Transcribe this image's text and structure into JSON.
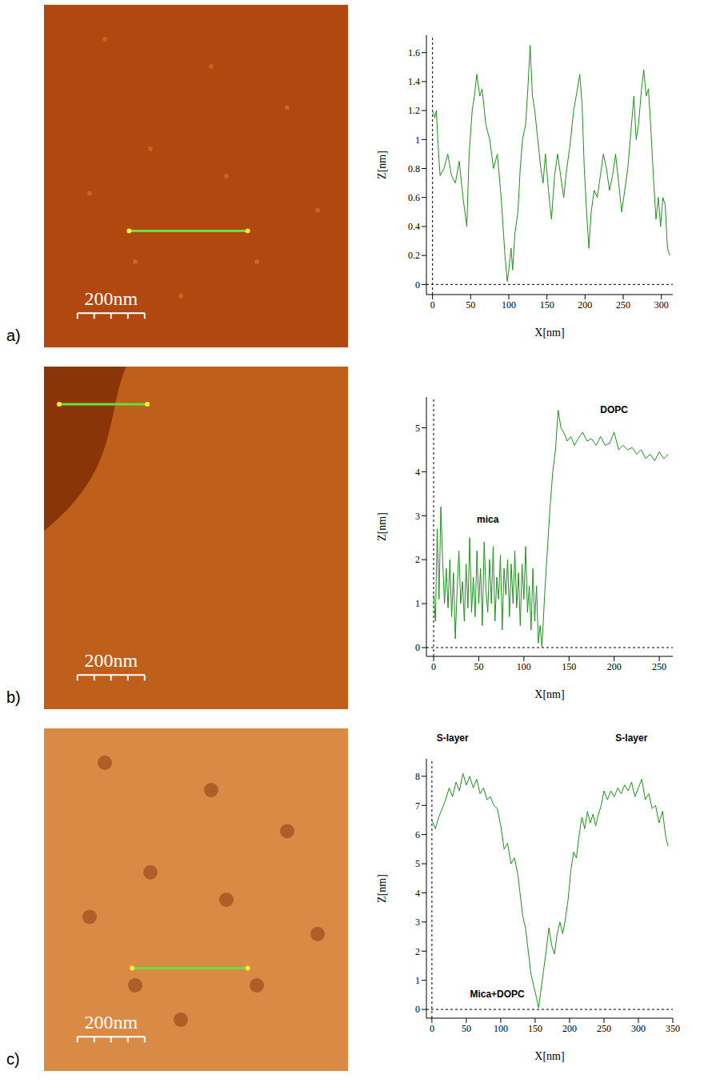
{
  "chart_data": [
    {
      "type": "line",
      "panel": "a)",
      "scale_bar": "200nm",
      "x_label": "X[nm]",
      "y_label": "Z[nm]",
      "color": "#1f8f1f",
      "xlim": [
        -8,
        315
      ],
      "ylim": [
        -0.07,
        1.72
      ],
      "xticks": [
        0,
        50,
        100,
        150,
        200,
        250,
        300
      ],
      "yticks": [
        0,
        0.2,
        0.4,
        0.6,
        0.8,
        1,
        1.2,
        1.4,
        1.6
      ],
      "x": [
        0,
        3,
        5,
        8,
        10,
        15,
        20,
        25,
        30,
        35,
        40,
        45,
        48,
        52,
        55,
        58,
        62,
        65,
        70,
        75,
        80,
        85,
        90,
        95,
        98,
        100,
        103,
        105,
        108,
        112,
        115,
        118,
        122,
        125,
        128,
        131,
        134,
        138,
        142,
        145,
        148,
        152,
        156,
        160,
        164,
        168,
        172,
        176,
        180,
        185,
        190,
        193,
        196,
        199,
        202,
        205,
        208,
        212,
        216,
        220,
        224,
        228,
        232,
        236,
        240,
        244,
        248,
        252,
        256,
        260,
        264,
        267,
        270,
        274,
        277,
        280,
        283,
        286,
        290,
        293,
        296,
        299,
        302,
        305,
        308,
        311
      ],
      "values": [
        1.2,
        1.15,
        1.2,
        0.9,
        0.75,
        0.8,
        0.9,
        0.75,
        0.7,
        0.85,
        0.6,
        0.4,
        0.9,
        1.2,
        1.3,
        1.45,
        1.3,
        1.35,
        1.1,
        1.0,
        0.8,
        0.9,
        0.6,
        0.2,
        0.02,
        0.1,
        0.25,
        0.1,
        0.35,
        0.5,
        0.8,
        1.0,
        1.1,
        1.35,
        1.65,
        1.3,
        1.2,
        1.0,
        0.8,
        0.7,
        0.9,
        0.65,
        0.45,
        0.75,
        0.9,
        0.75,
        0.6,
        0.8,
        0.95,
        1.2,
        1.35,
        1.45,
        1.25,
        0.8,
        0.5,
        0.25,
        0.5,
        0.65,
        0.6,
        0.75,
        0.9,
        0.8,
        0.65,
        0.75,
        0.9,
        0.7,
        0.5,
        0.65,
        0.8,
        1.05,
        1.3,
        1.0,
        1.1,
        1.35,
        1.48,
        1.3,
        1.35,
        1.1,
        0.7,
        0.45,
        0.6,
        0.4,
        0.6,
        0.55,
        0.25,
        0.2
      ],
      "annotations": []
    },
    {
      "type": "line",
      "panel": "b)",
      "scale_bar": "200nm",
      "x_label": "X[nm]",
      "y_label": "Z[nm]",
      "color": "#1f8f1f",
      "xlim": [
        -8,
        265
      ],
      "ylim": [
        -0.2,
        5.7
      ],
      "xticks": [
        0,
        50,
        100,
        150,
        200,
        250
      ],
      "yticks": [
        0,
        1,
        2,
        3,
        4,
        5
      ],
      "x": [
        0,
        2,
        4,
        6,
        8,
        10,
        12,
        14,
        16,
        18,
        20,
        22,
        24,
        26,
        28,
        30,
        32,
        34,
        36,
        38,
        40,
        42,
        44,
        46,
        48,
        50,
        52,
        54,
        56,
        58,
        60,
        62,
        64,
        66,
        68,
        70,
        72,
        74,
        76,
        78,
        80,
        82,
        84,
        86,
        88,
        90,
        92,
        94,
        96,
        98,
        100,
        102,
        104,
        106,
        108,
        110,
        112,
        114,
        116,
        118,
        120,
        123,
        126,
        129,
        132,
        135,
        138,
        141,
        144,
        148,
        152,
        156,
        160,
        165,
        170,
        175,
        180,
        185,
        190,
        195,
        200,
        205,
        210,
        215,
        220,
        225,
        230,
        235,
        240,
        245,
        250,
        255,
        260
      ],
      "values": [
        1.2,
        0.6,
        2.7,
        1.1,
        3.2,
        2.0,
        1.0,
        1.8,
        0.9,
        2.0,
        0.7,
        1.7,
        0.2,
        1.3,
        2.2,
        1.0,
        1.5,
        0.6,
        1.9,
        0.9,
        2.5,
        0.8,
        1.6,
        0.7,
        2.2,
        1.0,
        1.8,
        0.5,
        2.4,
        1.3,
        0.8,
        2.0,
        1.0,
        2.3,
        0.6,
        1.6,
        1.1,
        2.1,
        0.4,
        1.8,
        1.2,
        2.0,
        0.7,
        1.9,
        1.0,
        2.2,
        0.9,
        1.7,
        0.5,
        1.9,
        1.1,
        2.3,
        0.8,
        1.4,
        0.4,
        1.8,
        0.6,
        1.4,
        0.1,
        0.5,
        0.0,
        1.2,
        2.2,
        3.2,
        4.0,
        4.5,
        5.4,
        5.0,
        4.9,
        4.7,
        4.8,
        4.6,
        4.75,
        4.9,
        4.7,
        4.75,
        4.6,
        4.8,
        4.6,
        4.65,
        4.9,
        4.5,
        4.6,
        4.5,
        4.55,
        4.4,
        4.5,
        4.3,
        4.4,
        4.25,
        4.45,
        4.3,
        4.4
      ],
      "annotations": [
        {
          "text": "mica",
          "x": 60,
          "y": 2.9
        },
        {
          "text": "DOPC",
          "x": 200,
          "y": 5.4
        }
      ]
    },
    {
      "type": "line",
      "panel": "c)",
      "scale_bar": "200nm",
      "x_label": "X[nm]",
      "y_label": "Z[nm]",
      "color": "#1f8f1f",
      "xlim": [
        -8,
        350
      ],
      "ylim": [
        -0.3,
        8.6
      ],
      "xticks": [
        0,
        50,
        100,
        150,
        200,
        250,
        300,
        350
      ],
      "yticks": [
        0,
        1,
        2,
        3,
        4,
        5,
        6,
        7,
        8
      ],
      "x": [
        0,
        5,
        10,
        15,
        20,
        25,
        30,
        35,
        40,
        45,
        50,
        55,
        60,
        65,
        70,
        75,
        80,
        85,
        90,
        95,
        100,
        105,
        110,
        115,
        120,
        125,
        128,
        132,
        136,
        140,
        144,
        148,
        152,
        155,
        158,
        162,
        166,
        170,
        174,
        178,
        182,
        186,
        190,
        194,
        198,
        202,
        206,
        210,
        214,
        218,
        222,
        226,
        230,
        234,
        238,
        242,
        246,
        250,
        255,
        260,
        265,
        270,
        275,
        280,
        285,
        290,
        295,
        300,
        305,
        310,
        315,
        320,
        325,
        330,
        335,
        340,
        343
      ],
      "values": [
        6.5,
        6.2,
        6.6,
        6.9,
        7.2,
        7.6,
        7.3,
        7.8,
        7.5,
        8.1,
        7.7,
        8.0,
        7.6,
        7.9,
        7.4,
        7.6,
        7.2,
        7.3,
        7.0,
        6.9,
        6.3,
        5.5,
        5.7,
        5.0,
        5.2,
        4.6,
        4.0,
        3.2,
        2.8,
        2.0,
        1.2,
        0.8,
        0.4,
        0.05,
        0.6,
        1.3,
        2.0,
        2.8,
        2.2,
        1.9,
        2.6,
        3.0,
        2.6,
        3.1,
        3.8,
        4.8,
        5.4,
        5.2,
        6.0,
        6.6,
        6.2,
        6.8,
        6.4,
        6.7,
        6.3,
        6.7,
        7.0,
        7.5,
        7.2,
        7.5,
        7.3,
        7.6,
        7.4,
        7.7,
        7.5,
        7.8,
        7.3,
        7.6,
        7.9,
        7.2,
        7.4,
        6.9,
        7.0,
        6.4,
        6.8,
        5.9,
        5.6
      ],
      "annotations": [
        {
          "text": "S-layer",
          "x": 30,
          "y": 9.3
        },
        {
          "text": "S-layer",
          "x": 290,
          "y": 9.3
        },
        {
          "text": "Mica+DOPC",
          "x": 95,
          "y": 0.5
        }
      ]
    }
  ]
}
